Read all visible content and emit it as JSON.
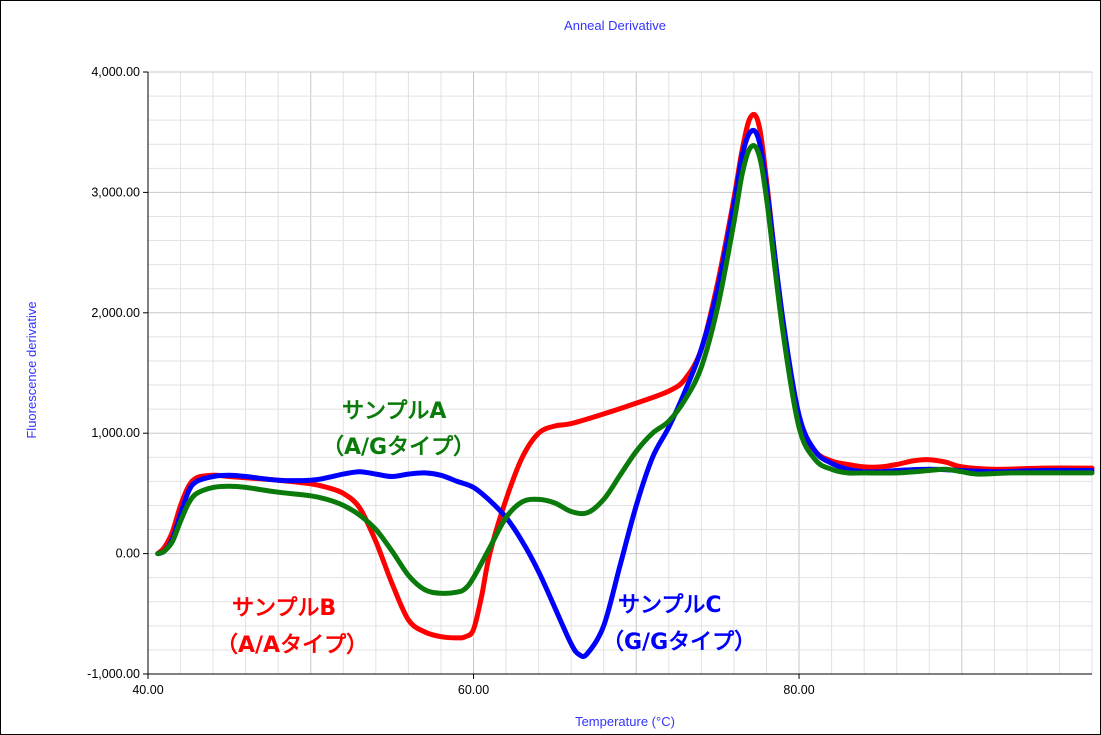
{
  "chart_data": {
    "type": "line",
    "title": "Anneal Derivative",
    "xlabel": "Temperature (°C)",
    "ylabel": "Fluorescence derivative",
    "xlim": [
      40,
      98
    ],
    "ylim": [
      -1000,
      4000
    ],
    "x_ticks": [
      40,
      60,
      80
    ],
    "x_tick_labels": [
      "40.00",
      "60.00",
      "80.00"
    ],
    "y_ticks": [
      -1000,
      0,
      1000,
      2000,
      3000,
      4000
    ],
    "y_tick_labels": [
      "-1,000.00",
      "0.00",
      "1,000.00",
      "2,000.00",
      "3,000.00",
      "4,000.00"
    ],
    "grid": true,
    "series": [
      {
        "color": "#ff0000",
        "x": [
          40.6,
          41.0,
          41.5,
          42.0,
          42.5,
          43.0,
          44.0,
          45.0,
          46.0,
          48.0,
          50.0,
          51.0,
          52.0,
          53.0,
          54.0,
          55.0,
          56.0,
          57.0,
          58.0,
          59.0,
          59.5,
          60.0,
          60.5,
          61.0,
          62.0,
          63.0,
          64.0,
          65.0,
          66.0,
          68.0,
          70.0,
          72.0,
          73.0,
          74.0,
          75.0,
          76.0,
          76.5,
          77.0,
          77.5,
          78.0,
          79.0,
          80.0,
          81.0,
          82.0,
          83.0,
          84.0,
          85.0,
          86.0,
          87.0,
          88.0,
          89.0,
          90.0,
          92.0,
          95.0,
          98.0
        ],
        "y": [
          0,
          50,
          180,
          400,
          560,
          630,
          650,
          640,
          630,
          610,
          580,
          550,
          500,
          380,
          100,
          -250,
          -550,
          -650,
          -690,
          -700,
          -690,
          -630,
          -350,
          0,
          450,
          800,
          1000,
          1060,
          1080,
          1160,
          1250,
          1350,
          1450,
          1700,
          2250,
          2950,
          3350,
          3620,
          3580,
          3100,
          1900,
          1100,
          850,
          770,
          740,
          720,
          720,
          740,
          770,
          780,
          760,
          720,
          700,
          710,
          710
        ]
      },
      {
        "color": "#0000ff",
        "x": [
          40.6,
          41.0,
          41.5,
          42.0,
          42.5,
          43.0,
          44.0,
          45.0,
          46.0,
          48.0,
          50.0,
          51.0,
          52.0,
          53.0,
          54.0,
          55.0,
          56.0,
          57.0,
          58.0,
          59.0,
          60.0,
          61.0,
          62.0,
          63.0,
          64.0,
          65.0,
          66.0,
          66.5,
          67.0,
          68.0,
          69.0,
          70.0,
          71.0,
          72.0,
          73.0,
          74.0,
          75.0,
          76.0,
          76.5,
          77.0,
          77.5,
          78.0,
          79.0,
          80.0,
          81.0,
          82.0,
          83.0,
          84.0,
          85.0,
          86.0,
          88.0,
          90.0,
          92.0,
          95.0,
          98.0
        ],
        "y": [
          0,
          20,
          120,
          330,
          520,
          600,
          640,
          650,
          640,
          610,
          610,
          630,
          660,
          680,
          660,
          640,
          660,
          670,
          650,
          600,
          550,
          440,
          300,
          100,
          -150,
          -450,
          -750,
          -840,
          -830,
          -600,
          -100,
          400,
          800,
          1050,
          1350,
          1700,
          2200,
          2900,
          3300,
          3500,
          3450,
          3050,
          1950,
          1150,
          850,
          750,
          700,
          680,
          680,
          690,
          700,
          690,
          680,
          690,
          690
        ]
      },
      {
        "color": "#0a7a0a",
        "x": [
          40.6,
          41.0,
          41.5,
          42.0,
          42.5,
          43.0,
          44.0,
          45.0,
          46.0,
          48.0,
          50.0,
          51.0,
          52.0,
          53.0,
          54.0,
          55.0,
          56.0,
          57.0,
          58.0,
          59.0,
          59.5,
          60.0,
          61.0,
          62.0,
          63.0,
          64.0,
          65.0,
          66.0,
          67.0,
          68.0,
          69.0,
          70.0,
          71.0,
          72.0,
          73.0,
          74.0,
          75.0,
          76.0,
          76.5,
          77.0,
          77.5,
          78.0,
          79.0,
          80.0,
          81.0,
          82.0,
          83.0,
          84.0,
          86.0,
          88.0,
          89.0,
          90.0,
          91.0,
          93.0,
          95.0,
          98.0
        ],
        "y": [
          0,
          20,
          100,
          270,
          420,
          500,
          550,
          560,
          550,
          510,
          480,
          450,
          400,
          320,
          200,
          20,
          -180,
          -300,
          -330,
          -320,
          -290,
          -200,
          50,
          300,
          430,
          450,
          420,
          350,
          340,
          450,
          650,
          850,
          1000,
          1100,
          1280,
          1550,
          2050,
          2750,
          3150,
          3370,
          3330,
          2950,
          1850,
          1050,
          780,
          700,
          670,
          670,
          670,
          690,
          700,
          680,
          660,
          670,
          670,
          670
        ]
      }
    ]
  },
  "annotations": [
    {
      "line1": "サンプルA",
      "line2": "（A/Gタイプ）",
      "color": "#0a7a0a"
    },
    {
      "line1": "サンプルB",
      "line2": "（A/Aタイプ）",
      "color": "#ff0000"
    },
    {
      "line1": "サンプルC",
      "line2": "（G/Gタイプ）",
      "color": "#0000ff"
    }
  ]
}
